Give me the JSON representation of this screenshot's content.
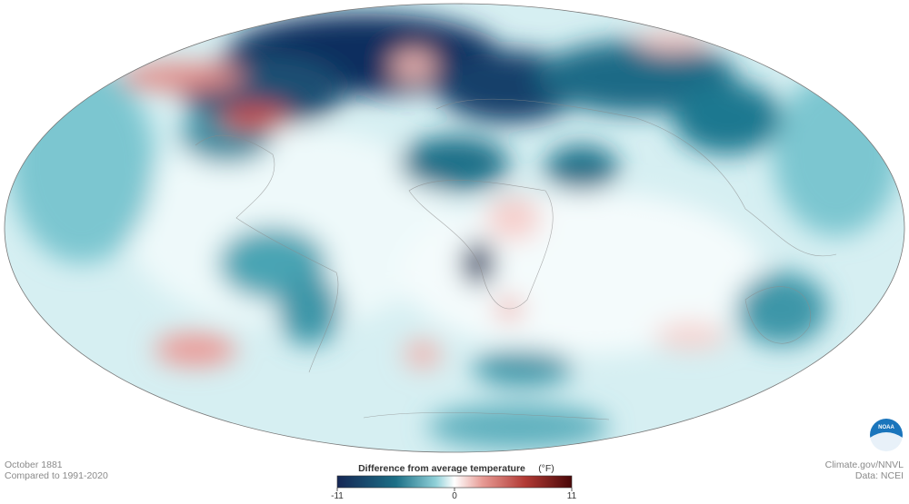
{
  "header": {
    "date": "October 1881",
    "baseline": "Compared to 1991-2020"
  },
  "legend": {
    "title": "Difference from average temperature",
    "unit": "(°F)",
    "range": [
      -11,
      11
    ],
    "ticks": [
      -11,
      0,
      11
    ]
  },
  "credits": {
    "source": "Climate.gov/NNVL",
    "data": "Data: NCEI",
    "logo": "NOAA"
  }
}
